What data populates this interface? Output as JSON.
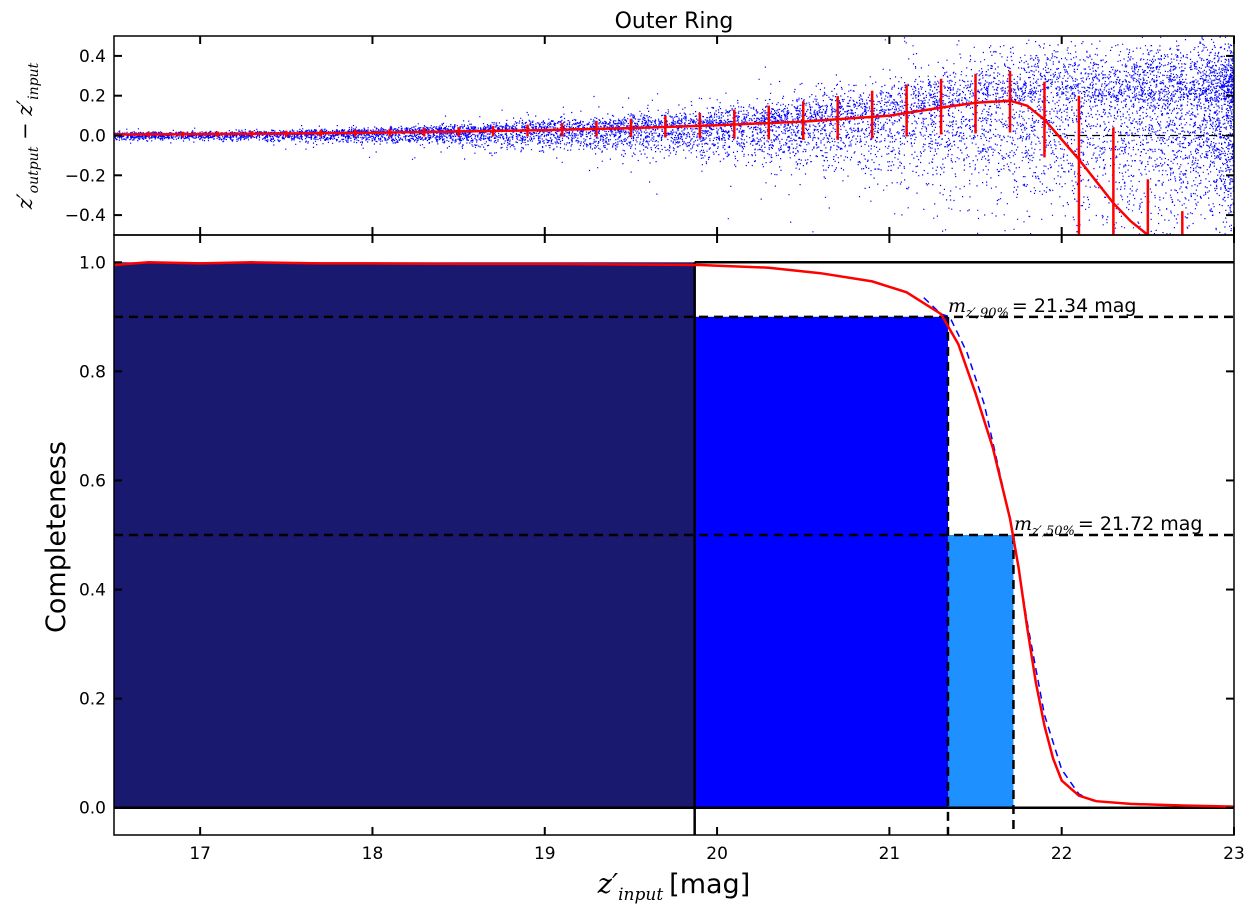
{
  "chart_data": [
    {
      "type": "scatter",
      "title": "Outer Ring",
      "ylabel": "z'output − z'input",
      "xlim": [
        16.5,
        23.0
      ],
      "ylim": [
        -0.5,
        0.5
      ],
      "xticks": [
        "17",
        "18",
        "19",
        "20",
        "21",
        "22",
        "23"
      ],
      "yticks": [
        "−0.4",
        "−0.2",
        "0.0",
        "0.2",
        "0.4"
      ],
      "ytick_values": [
        -0.4,
        -0.2,
        0.0,
        0.2,
        0.4
      ],
      "reference_line_y": 0.0,
      "colors": {
        "points": "#0000ff",
        "median": "#ff0000",
        "reference": "#000000"
      },
      "scatter_envelope": {
        "x": [
          16.5,
          17.0,
          17.5,
          18.0,
          18.5,
          19.0,
          19.5,
          20.0,
          20.5,
          21.0,
          21.5,
          22.0,
          22.3,
          22.6,
          23.0
        ],
        "upper": [
          0.02,
          0.02,
          0.03,
          0.04,
          0.06,
          0.08,
          0.11,
          0.15,
          0.21,
          0.29,
          0.4,
          0.5,
          0.5,
          0.5,
          0.5
        ],
        "lower": [
          -0.02,
          -0.02,
          -0.03,
          -0.04,
          -0.05,
          -0.07,
          -0.09,
          -0.12,
          -0.17,
          -0.24,
          -0.34,
          -0.46,
          -0.5,
          -0.5,
          -0.5
        ]
      },
      "median_curve": {
        "x": [
          16.5,
          17.0,
          17.5,
          18.0,
          18.5,
          19.0,
          19.5,
          20.0,
          20.5,
          21.0,
          21.3,
          21.5,
          21.7,
          21.8,
          21.9,
          22.0,
          22.1,
          22.2,
          22.3,
          22.4,
          22.5
        ],
        "y": [
          0.005,
          0.007,
          0.01,
          0.014,
          0.02,
          0.027,
          0.037,
          0.052,
          0.07,
          0.1,
          0.14,
          0.165,
          0.175,
          0.15,
          0.08,
          -0.02,
          -0.12,
          -0.23,
          -0.34,
          -0.43,
          -0.5
        ]
      },
      "error_bars": {
        "x": [
          16.7,
          16.9,
          17.1,
          17.3,
          17.5,
          17.7,
          17.9,
          18.1,
          18.3,
          18.5,
          18.7,
          18.9,
          19.1,
          19.3,
          19.5,
          19.7,
          19.9,
          20.1,
          20.3,
          20.5,
          20.7,
          20.9,
          21.1,
          21.3,
          21.5,
          21.7,
          21.9,
          22.1,
          22.3,
          22.5,
          22.7
        ],
        "center": [
          0.005,
          0.006,
          0.007,
          0.008,
          0.009,
          0.011,
          0.012,
          0.014,
          0.016,
          0.019,
          0.022,
          0.025,
          0.029,
          0.033,
          0.038,
          0.044,
          0.05,
          0.057,
          0.065,
          0.075,
          0.088,
          0.105,
          0.125,
          0.145,
          0.16,
          0.17,
          0.08,
          -0.2,
          -0.3,
          -0.4,
          -0.47
        ],
        "half_width": [
          0.012,
          0.013,
          0.013,
          0.014,
          0.015,
          0.016,
          0.017,
          0.019,
          0.021,
          0.023,
          0.026,
          0.03,
          0.034,
          0.039,
          0.046,
          0.054,
          0.063,
          0.073,
          0.085,
          0.097,
          0.11,
          0.12,
          0.13,
          0.14,
          0.15,
          0.155,
          0.19,
          0.4,
          0.34,
          0.18,
          0.09
        ]
      }
    },
    {
      "type": "line",
      "xlabel": "z'input [mag]",
      "ylabel": "Completeness",
      "xlim": [
        16.5,
        23.0
      ],
      "ylim": [
        -0.05,
        1.05
      ],
      "xticks": [
        "17",
        "18",
        "19",
        "20",
        "21",
        "22",
        "23"
      ],
      "xtick_values": [
        17,
        18,
        19,
        20,
        21,
        22,
        23
      ],
      "yticks": [
        "0.0",
        "0.2",
        "0.4",
        "0.6",
        "0.8",
        "1.0"
      ],
      "ytick_values": [
        0.0,
        0.2,
        0.4,
        0.6,
        0.8,
        1.0
      ],
      "series": [
        {
          "color": "#ff0000",
          "x": [
            16.5,
            16.7,
            17.0,
            17.3,
            17.7,
            18.0,
            18.5,
            19.0,
            19.5,
            19.9,
            20.3,
            20.6,
            20.9,
            21.1,
            21.3,
            21.4,
            21.5,
            21.6,
            21.7,
            21.75,
            21.8,
            21.85,
            21.9,
            21.95,
            22.0,
            22.1,
            22.2,
            22.4,
            22.7,
            23.0
          ],
          "y": [
            0.995,
            1.0,
            0.998,
            1.0,
            0.998,
            0.998,
            0.997,
            0.997,
            0.996,
            0.995,
            0.99,
            0.98,
            0.965,
            0.945,
            0.905,
            0.85,
            0.76,
            0.66,
            0.53,
            0.44,
            0.33,
            0.23,
            0.15,
            0.09,
            0.05,
            0.022,
            0.012,
            0.007,
            0.004,
            0.002
          ]
        },
        {
          "color": "#0000ff",
          "dashed": true,
          "x": [
            21.2,
            21.3,
            21.35,
            21.45,
            21.55,
            21.65,
            21.72,
            21.8,
            21.9,
            22.0,
            22.1,
            22.2
          ],
          "y": [
            0.935,
            0.905,
            0.9,
            0.835,
            0.74,
            0.6,
            0.5,
            0.34,
            0.17,
            0.07,
            0.025,
            0.01
          ]
        }
      ],
      "bands": [
        {
          "x0": 16.5,
          "x1": 19.87,
          "height": 1.0,
          "color": "#191970"
        },
        {
          "x0": 19.87,
          "x1": 21.34,
          "height": 0.9,
          "color": "#0000ff"
        },
        {
          "x0": 21.34,
          "x1": 21.72,
          "height": 0.5,
          "color": "#1e90ff"
        }
      ],
      "reference_lines": {
        "horizontal": [
          0.9,
          0.5
        ],
        "vertical_solid": [
          19.87
        ],
        "vertical_dashed": [
          21.34,
          21.72
        ]
      },
      "annotations": [
        {
          "x": 21.37,
          "y": 0.91,
          "label": "m_{z′,90%} = 21.34 mag",
          "base": "m",
          "sub": "z′,90%",
          "value": "= 21.34 mag"
        },
        {
          "x": 21.75,
          "y": 0.51,
          "label": "m_{z′,50%} = 21.72 mag",
          "base": "m",
          "sub": "z′,50%",
          "value": "= 21.72 mag"
        }
      ]
    }
  ]
}
